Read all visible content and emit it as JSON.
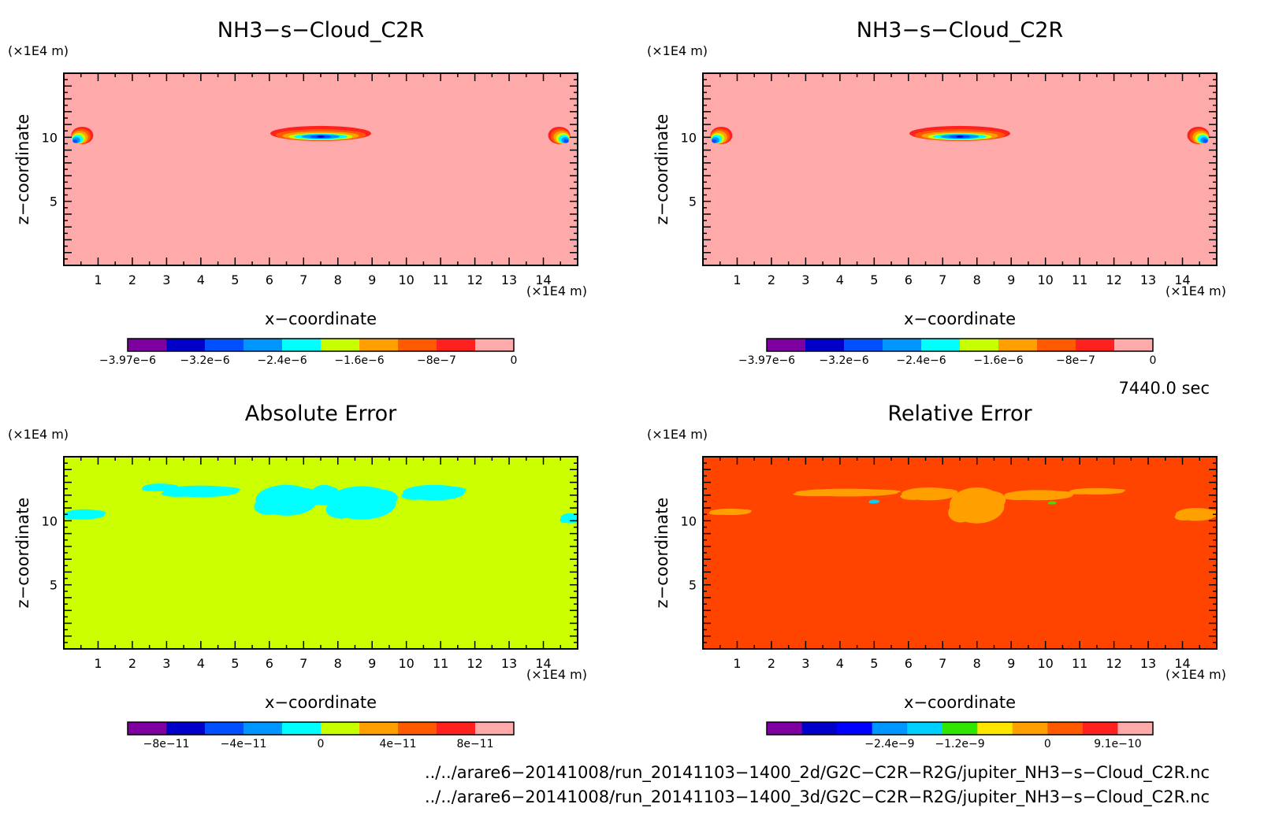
{
  "chart_data": [
    {
      "type": "heatmap",
      "title": "NH3−s−Cloud_C2R",
      "xlabel": "x−coordinate",
      "ylabel": "z−coordinate",
      "x_unit": "(×1E4 m)",
      "y_unit": "(×1E4 m)",
      "xlim": [
        0,
        15
      ],
      "ylim": [
        0,
        15
      ],
      "x_ticks": [
        "1",
        "2",
        "3",
        "4",
        "5",
        "6",
        "7",
        "8",
        "9",
        "10",
        "11",
        "12",
        "13",
        "14"
      ],
      "y_ticks": [
        "5",
        "10"
      ],
      "background_color": "#ffaaaa",
      "colorbar": {
        "colors": [
          "#7f00a0",
          "#0000c8",
          "#0050ff",
          "#0096ff",
          "#00ffff",
          "#c8ff00",
          "#ffa000",
          "#ff5a00",
          "#ff2020",
          "#ffaaaa"
        ],
        "labels": [
          "−3.97e−6",
          "−3.2e−6",
          "−2.4e−6",
          "−1.6e−6",
          "−8e−7",
          "0"
        ]
      },
      "features": [
        {
          "kind": "cloud",
          "x": 7.5,
          "z": 10.3,
          "wx": 1.55,
          "wz": 0.28
        },
        {
          "kind": "edge-left",
          "x": 0.4,
          "z": 9.9
        },
        {
          "kind": "edge-right",
          "x": 14.6,
          "z": 9.9
        }
      ]
    },
    {
      "type": "heatmap",
      "title": "NH3−s−Cloud_C2R",
      "xlabel": "x−coordinate",
      "ylabel": "z−coordinate",
      "x_unit": "(×1E4 m)",
      "y_unit": "(×1E4 m)",
      "xlim": [
        0,
        15
      ],
      "ylim": [
        0,
        15
      ],
      "x_ticks": [
        "1",
        "2",
        "3",
        "4",
        "5",
        "6",
        "7",
        "8",
        "9",
        "10",
        "11",
        "12",
        "13",
        "14"
      ],
      "y_ticks": [
        "5",
        "10"
      ],
      "background_color": "#ffaaaa",
      "colorbar": {
        "colors": [
          "#7f00a0",
          "#0000c8",
          "#0050ff",
          "#0096ff",
          "#00ffff",
          "#c8ff00",
          "#ffa000",
          "#ff5a00",
          "#ff2020",
          "#ffaaaa"
        ],
        "labels": [
          "−3.97e−6",
          "−3.2e−6",
          "−2.4e−6",
          "−1.6e−6",
          "−8e−7",
          "0"
        ]
      },
      "features": [
        {
          "kind": "cloud",
          "x": 7.5,
          "z": 10.3,
          "wx": 1.55,
          "wz": 0.28
        },
        {
          "kind": "edge-left",
          "x": 0.4,
          "z": 9.9
        },
        {
          "kind": "edge-right",
          "x": 14.6,
          "z": 9.9
        }
      ]
    },
    {
      "type": "heatmap",
      "title": "Absolute Error",
      "xlabel": "x−coordinate",
      "ylabel": "z−coordinate",
      "x_unit": "(×1E4 m)",
      "y_unit": "(×1E4 m)",
      "xlim": [
        0,
        15
      ],
      "ylim": [
        0,
        15
      ],
      "x_ticks": [
        "1",
        "2",
        "3",
        "4",
        "5",
        "6",
        "7",
        "8",
        "9",
        "10",
        "11",
        "12",
        "13",
        "14"
      ],
      "y_ticks": [
        "5",
        "10"
      ],
      "background_color": "#ccff00",
      "colorbar": {
        "colors": [
          "#7f00a0",
          "#0000c8",
          "#0050ff",
          "#0096ff",
          "#00ffff",
          "#c8ff00",
          "#ffa000",
          "#ff5a00",
          "#ff2020",
          "#ffaaaa"
        ],
        "labels": [
          "−8e−11",
          "−4e−11",
          "0",
          "4e−11",
          "8e−11"
        ]
      },
      "features": [
        {
          "kind": "patch",
          "color": "#00ffff",
          "x": 4.0,
          "z": 12.3,
          "wx": 1.1,
          "wz": 0.45
        },
        {
          "kind": "patch",
          "color": "#00ffff",
          "x": 2.8,
          "z": 12.6,
          "wx": 0.5,
          "wz": 0.3
        },
        {
          "kind": "patch",
          "color": "#00ffff",
          "x": 6.5,
          "z": 11.6,
          "wx": 0.9,
          "wz": 1.2
        },
        {
          "kind": "patch",
          "color": "#00ffff",
          "x": 8.7,
          "z": 11.4,
          "wx": 1.0,
          "wz": 1.3
        },
        {
          "kind": "patch",
          "color": "#00ffff",
          "x": 7.6,
          "z": 12.0,
          "wx": 0.4,
          "wz": 0.8
        },
        {
          "kind": "patch",
          "color": "#00ffff",
          "x": 10.8,
          "z": 12.2,
          "wx": 0.9,
          "wz": 0.6
        },
        {
          "kind": "patch",
          "color": "#00ffff",
          "x": 0.6,
          "z": 10.5,
          "wx": 0.6,
          "wz": 0.4
        },
        {
          "kind": "patch",
          "color": "#00ffff",
          "x": 14.8,
          "z": 10.2,
          "wx": 0.3,
          "wz": 0.4
        }
      ]
    },
    {
      "type": "heatmap",
      "title": "Relative Error",
      "xlabel": "x−coordinate",
      "ylabel": "z−coordinate",
      "x_unit": "(×1E4 m)",
      "y_unit": "(×1E4 m)",
      "xlim": [
        0,
        15
      ],
      "ylim": [
        0,
        15
      ],
      "x_ticks": [
        "1",
        "2",
        "3",
        "4",
        "5",
        "6",
        "7",
        "8",
        "9",
        "10",
        "11",
        "12",
        "13",
        "14"
      ],
      "y_ticks": [
        "5",
        "10"
      ],
      "background_color": "#ff4400",
      "colorbar": {
        "colors": [
          "#7f00a0",
          "#0000c8",
          "#0000ff",
          "#0096ff",
          "#00d0ff",
          "#30e600",
          "#ffe600",
          "#ffa000",
          "#ff5a00",
          "#ff2020",
          "#ffaaaa"
        ],
        "labels": [
          "−2.4e−9",
          "−1.2e−9",
          "0",
          "9.1e−10"
        ]
      },
      "features": [
        {
          "kind": "patch",
          "color": "#ffa000",
          "x": 8.0,
          "z": 11.2,
          "wx": 0.8,
          "wz": 1.4
        },
        {
          "kind": "patch",
          "color": "#ffa000",
          "x": 4.2,
          "z": 12.2,
          "wx": 1.5,
          "wz": 0.3
        },
        {
          "kind": "patch",
          "color": "#ffa000",
          "x": 6.6,
          "z": 12.1,
          "wx": 0.8,
          "wz": 0.5
        },
        {
          "kind": "patch",
          "color": "#ffa000",
          "x": 9.8,
          "z": 12.0,
          "wx": 1.0,
          "wz": 0.4
        },
        {
          "kind": "patch",
          "color": "#ffa000",
          "x": 11.5,
          "z": 12.3,
          "wx": 0.8,
          "wz": 0.25
        },
        {
          "kind": "patch",
          "color": "#ffa000",
          "x": 14.4,
          "z": 10.5,
          "wx": 0.6,
          "wz": 0.5
        },
        {
          "kind": "patch",
          "color": "#ffa000",
          "x": 0.8,
          "z": 10.7,
          "wx": 0.6,
          "wz": 0.25
        },
        {
          "kind": "patch",
          "color": "#00d0ff",
          "x": 5.0,
          "z": 11.5,
          "wx": 0.15,
          "wz": 0.15
        },
        {
          "kind": "patch",
          "color": "#30e600",
          "x": 10.2,
          "z": 11.4,
          "wx": 0.12,
          "wz": 0.12
        }
      ]
    }
  ],
  "time_label": "7440.0 sec",
  "footer_lines": [
    "../../arare6−20141008/run_20141103−1400_2d/G2C−C2R−R2G/jupiter_NH3−s−Cloud_C2R.nc",
    "../../arare6−20141008/run_20141103−1400_3d/G2C−C2R−R2G/jupiter_NH3−s−Cloud_C2R.nc"
  ]
}
